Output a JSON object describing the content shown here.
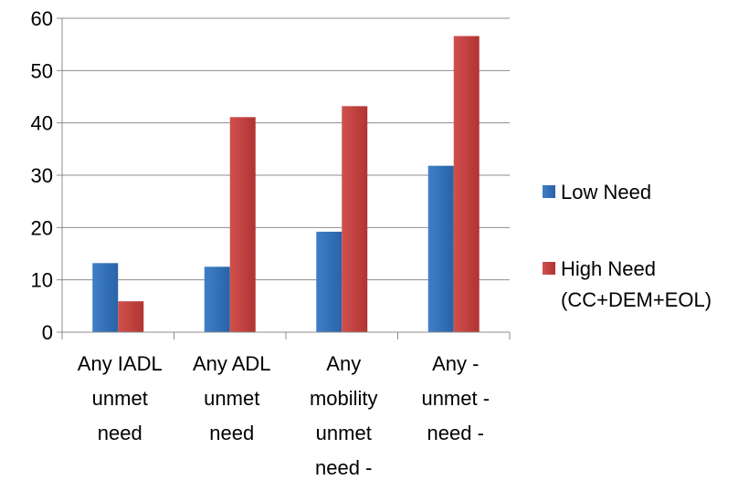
{
  "chart_data": {
    "type": "bar",
    "categories": [
      [
        "Any IADL",
        "unmet",
        "need"
      ],
      [
        "Any ADL",
        "unmet",
        "need"
      ],
      [
        "Any",
        "mobility",
        "unmet",
        "need -"
      ],
      [
        "Any -",
        "unmet -",
        "need -"
      ]
    ],
    "series": [
      {
        "name": "Low Need",
        "values": [
          13.2,
          12.5,
          19.2,
          31.8
        ],
        "color": "#2E6DB4"
      },
      {
        "name": "High Need (CC+DEM+EOL)",
        "legend_lines": [
          "High Need",
          "(CC+DEM+EOL)"
        ],
        "values": [
          5.9,
          41.1,
          43.2,
          56.6
        ],
        "color": "#C0393B"
      }
    ],
    "ylim": [
      0,
      60
    ],
    "yticks": [
      "0",
      "10",
      "20",
      "30",
      "40",
      "50",
      "60"
    ],
    "grid": true,
    "legend_position": "right",
    "title": "",
    "xlabel": "",
    "ylabel": ""
  }
}
